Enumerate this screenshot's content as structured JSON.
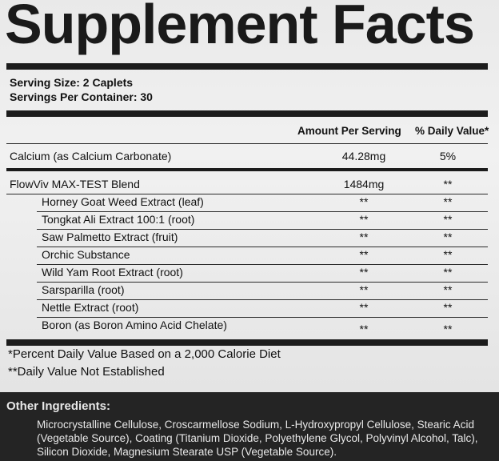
{
  "title": "Supplement Facts",
  "serving_size": "Serving Size: 2 Caplets",
  "servings_per_container": "Servings Per Container: 30",
  "headers": {
    "amount": "Amount Per Serving",
    "daily_value": "% Daily Value*"
  },
  "rows": [
    {
      "name": "Calcium (as Calcium Carbonate)",
      "amount": "44.28mg",
      "dv": "5%"
    },
    {
      "name": "FlowViv MAX-TEST Blend",
      "amount": "1484mg",
      "dv": "**"
    },
    {
      "name": "Horney Goat Weed Extract (leaf)",
      "amount": "**",
      "dv": "**"
    },
    {
      "name": "Tongkat Ali Extract 100:1 (root)",
      "amount": "**",
      "dv": "**"
    },
    {
      "name": "Saw Palmetto Extract (fruit)",
      "amount": "**",
      "dv": "**"
    },
    {
      "name": "Orchic Substance",
      "amount": "**",
      "dv": "**"
    },
    {
      "name": "Wild Yam Root Extract (root)",
      "amount": "**",
      "dv": "**"
    },
    {
      "name": "Sarsparilla (root)",
      "amount": "**",
      "dv": "**"
    },
    {
      "name": "Nettle Extract (root)",
      "amount": "**",
      "dv": "**"
    },
    {
      "name": "Boron (as Boron Amino Acid Chelate)",
      "amount": "**",
      "dv": "**"
    }
  ],
  "footnotes": [
    "*Percent Daily Value Based on a 2,000 Calorie Diet",
    "**Daily Value Not Established"
  ],
  "other_ingredients": {
    "heading": "Other Ingredients:",
    "text": "Microcrystalline Cellulose, Croscarmellose Sodium, L-Hydroxypropyl Cellulose, Stearic Acid (Vegetable Source), Coating (Titanium Dioxide, Polyethylene Glycol, Polyvinyl Alcohol, Talc), Silicon Dioxide, Magnesium Stearate USP (Vegetable Source)."
  }
}
